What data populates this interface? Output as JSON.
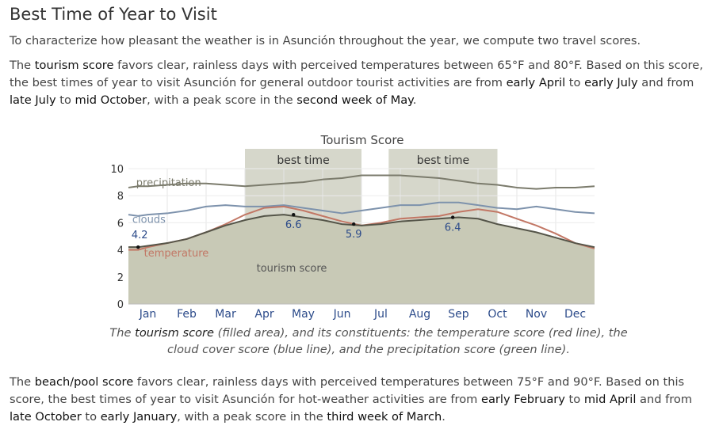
{
  "heading": "Best Time of Year to Visit",
  "intro": "To characterize how pleasant the weather is in Asunción throughout the year, we compute two travel scores.",
  "tourism_para": {
    "p1": "The ",
    "k1": "tourism score",
    "p2": " favors clear, rainless days with perceived temperatures between 65°F and 80°F. Based on this score, the best times of year to visit Asunción for general outdoor tourist activities are from ",
    "k2": "early April",
    "p3": " to ",
    "k3": "early July",
    "p4": " and from ",
    "k4": "late July",
    "p5": " to ",
    "k5": "mid October",
    "p6": ", with a peak score in the ",
    "k6": "second week of May",
    "p7": "."
  },
  "caption": {
    "p1": "The ",
    "k1": "tourism score",
    "p2": " (filled area), and its constituents: the temperature score (red line), the cloud cover score (blue line), and the precipitation score (green line)."
  },
  "beach_para": {
    "p1": "The ",
    "k1": "beach/pool score",
    "p2": " favors clear, rainless days with perceived temperatures between 75°F and 90°F. Based on this score, the best times of year to visit Asunción for hot-weather activities are from ",
    "k2": "early February",
    "p3": " to ",
    "k3": "mid April",
    "p4": " and from ",
    "k4": "late October",
    "p5": " to ",
    "k5": "early January",
    "p6": ", with a peak score in the ",
    "k6": "third week of March",
    "p7": "."
  },
  "colors": {
    "area": "#c8c9b6",
    "area_line": "#555549",
    "temperature": "#c27765",
    "clouds": "#7d92ac",
    "precipitation": "#7b7b6c",
    "band": "#d6d7cb",
    "annotation": "#2c4b8a"
  },
  "chart_data": {
    "type": "area",
    "title": "Tourism Score",
    "x_ticks": [
      "Jan",
      "Feb",
      "Mar",
      "Apr",
      "May",
      "Jun",
      "Jul",
      "Aug",
      "Sep",
      "Oct",
      "Nov",
      "Dec"
    ],
    "ylim": [
      0,
      10
    ],
    "y_ticks": [
      0,
      2,
      4,
      6,
      8,
      10
    ],
    "grid": true,
    "best_time_label": "best time",
    "best_time_ranges": [
      [
        3.0,
        6.0
      ],
      [
        6.7,
        9.5
      ]
    ],
    "series": [
      {
        "name": "tourism score",
        "x": [
          0,
          0.25,
          0.5,
          1,
          1.5,
          2,
          2.5,
          3,
          3.5,
          4,
          4.5,
          5,
          5.5,
          6,
          6.5,
          7,
          7.5,
          8,
          8.5,
          9,
          9.5,
          10,
          10.5,
          11,
          11.5,
          12
        ],
        "values": [
          4.2,
          4.2,
          4.3,
          4.5,
          4.8,
          5.3,
          5.8,
          6.2,
          6.5,
          6.6,
          6.4,
          6.2,
          5.9,
          5.8,
          5.9,
          6.1,
          6.2,
          6.3,
          6.4,
          6.3,
          5.9,
          5.6,
          5.3,
          4.9,
          4.5,
          4.2
        ]
      },
      {
        "name": "temperature",
        "x": [
          0,
          0.25,
          0.5,
          1,
          1.5,
          2,
          2.5,
          3,
          3.5,
          4,
          4.5,
          5,
          5.5,
          6,
          6.5,
          7,
          7.5,
          8,
          8.5,
          9,
          9.5,
          10,
          10.5,
          11,
          11.5,
          12
        ],
        "values": [
          4.0,
          4.0,
          4.2,
          4.5,
          4.8,
          5.3,
          5.9,
          6.6,
          7.1,
          7.2,
          6.9,
          6.5,
          6.1,
          5.8,
          6.0,
          6.3,
          6.4,
          6.5,
          6.8,
          7.0,
          6.8,
          6.3,
          5.8,
          5.2,
          4.5,
          4.1
        ]
      },
      {
        "name": "clouds",
        "x": [
          0,
          0.25,
          0.5,
          1,
          1.5,
          2,
          2.5,
          3,
          3.5,
          4,
          4.5,
          5,
          5.5,
          6,
          6.5,
          7,
          7.5,
          8,
          8.5,
          9,
          9.5,
          10,
          10.5,
          11,
          11.5,
          12
        ],
        "values": [
          6.6,
          6.5,
          6.6,
          6.7,
          6.9,
          7.2,
          7.3,
          7.2,
          7.2,
          7.3,
          7.1,
          6.9,
          6.7,
          6.9,
          7.1,
          7.3,
          7.3,
          7.5,
          7.5,
          7.3,
          7.1,
          7.0,
          7.2,
          7.0,
          6.8,
          6.7
        ]
      },
      {
        "name": "precipitation",
        "x": [
          0,
          0.25,
          0.5,
          1,
          1.5,
          2,
          2.5,
          3,
          3.5,
          4,
          4.5,
          5,
          5.5,
          6,
          6.5,
          7,
          7.5,
          8,
          8.5,
          9,
          9.5,
          10,
          10.5,
          11,
          11.5,
          12
        ],
        "values": [
          8.6,
          8.7,
          8.7,
          8.8,
          8.9,
          8.9,
          8.8,
          8.7,
          8.8,
          8.9,
          9.0,
          9.2,
          9.3,
          9.5,
          9.5,
          9.5,
          9.4,
          9.3,
          9.1,
          8.9,
          8.8,
          8.6,
          8.5,
          8.6,
          8.6,
          8.7
        ]
      }
    ],
    "series_labels": [
      "precipitation",
      "clouds",
      "temperature",
      "tourism score"
    ],
    "annotations": [
      {
        "x": 0.25,
        "y": 4.2,
        "label": "4.2"
      },
      {
        "x": 4.25,
        "y": 6.6,
        "label": "6.6"
      },
      {
        "x": 5.8,
        "y": 5.9,
        "label": "5.9"
      },
      {
        "x": 8.35,
        "y": 6.4,
        "label": "6.4"
      }
    ]
  }
}
